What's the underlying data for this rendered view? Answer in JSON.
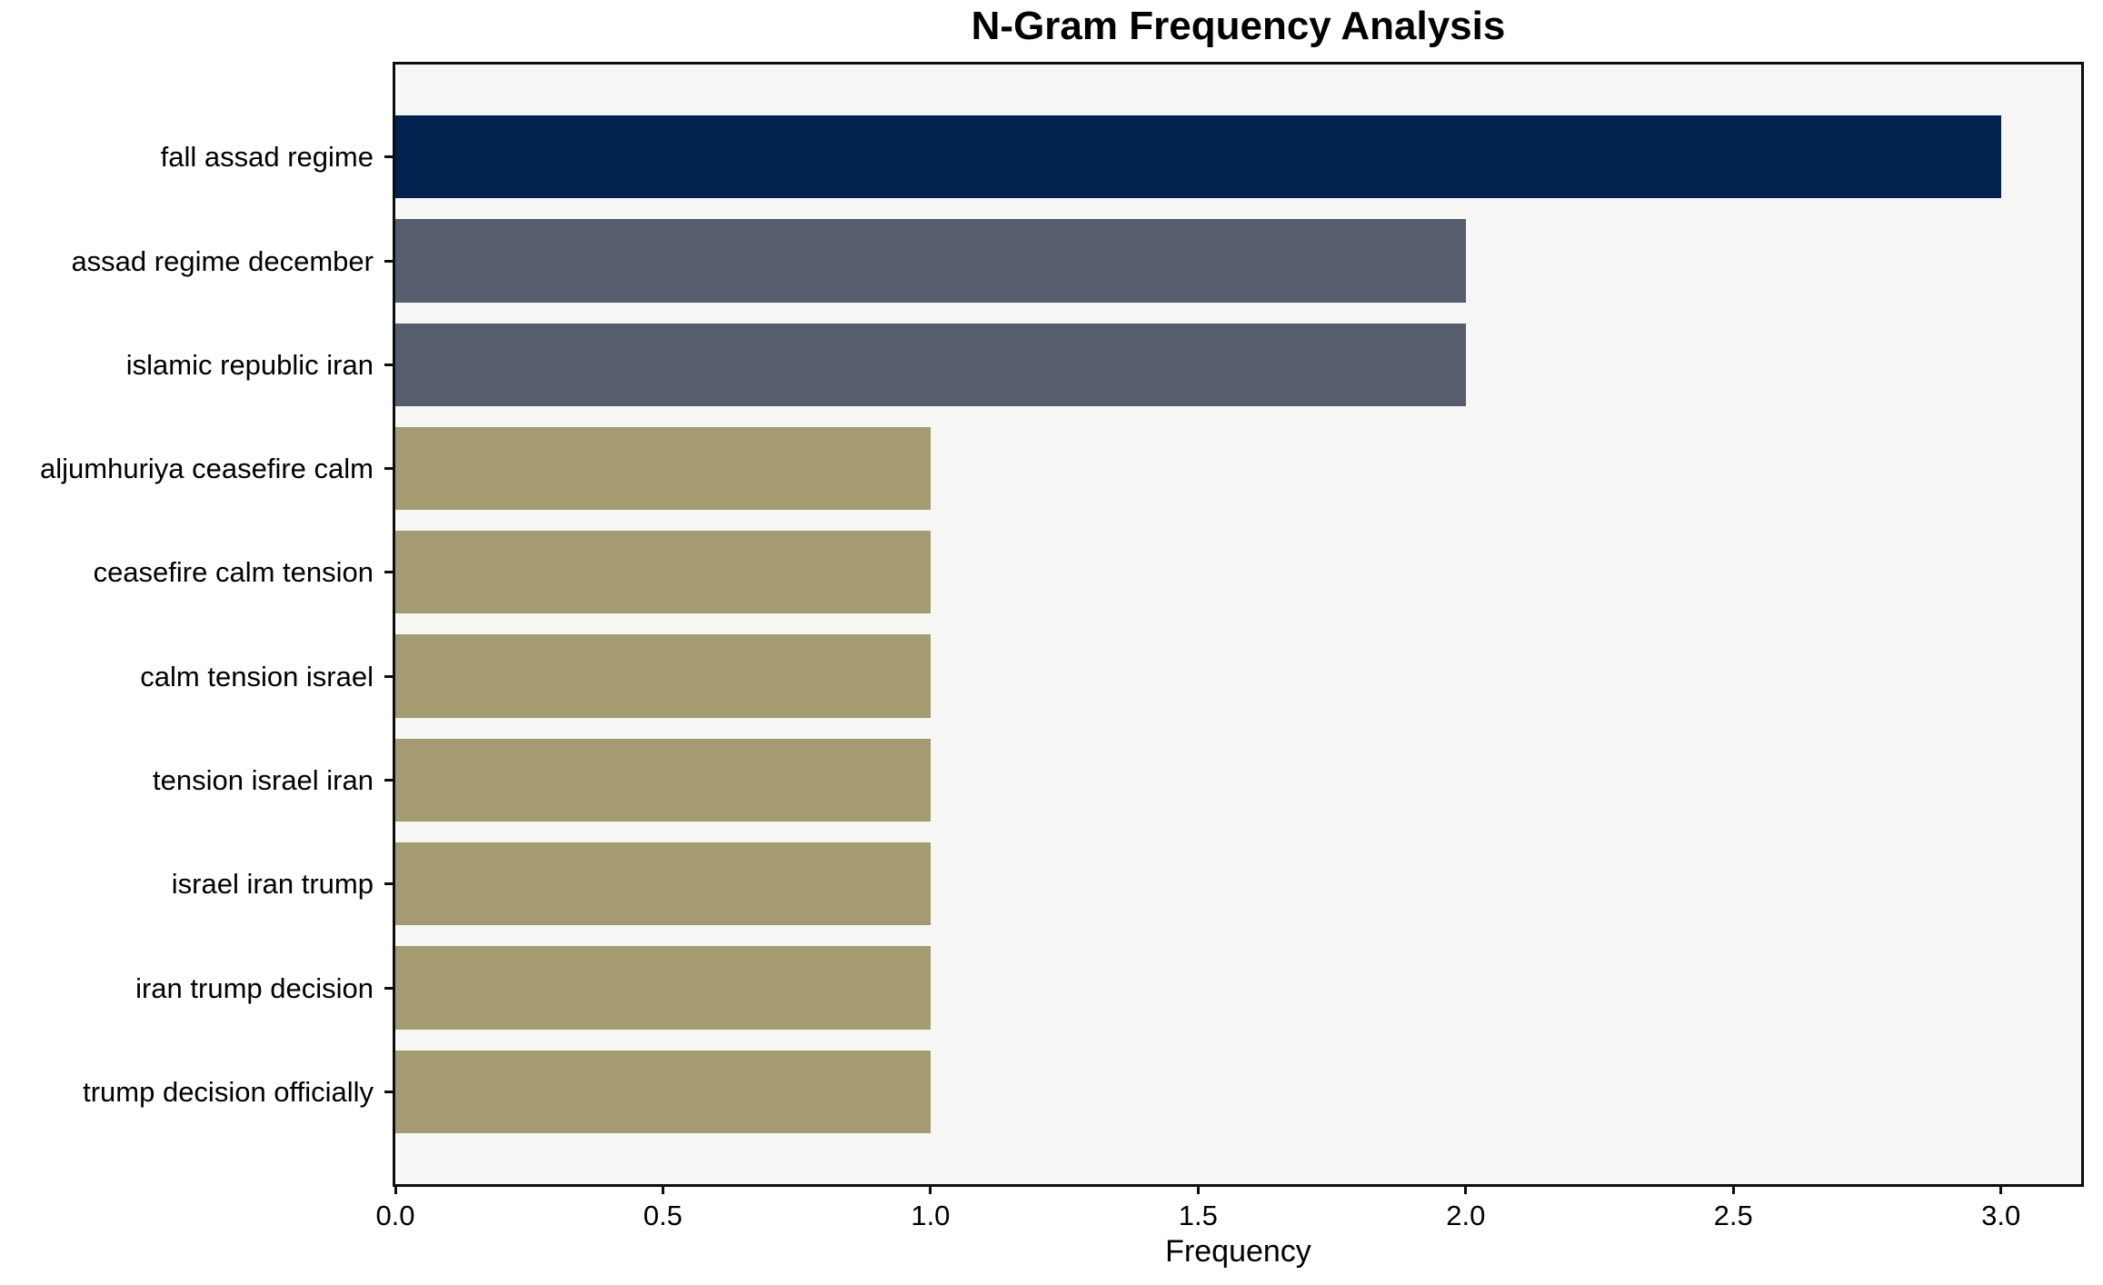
{
  "chart_data": {
    "type": "bar",
    "orientation": "horizontal",
    "title": "N-Gram Frequency Analysis",
    "xlabel": "Frequency",
    "ylabel": "",
    "categories": [
      "fall assad regime",
      "assad regime december",
      "islamic republic iran",
      "aljumhuriya ceasefire calm",
      "ceasefire calm tension",
      "calm tension israel",
      "tension israel iran",
      "israel iran trump",
      "iran trump decision",
      "trump decision officially"
    ],
    "values": [
      3,
      2,
      2,
      1,
      1,
      1,
      1,
      1,
      1,
      1
    ],
    "bar_colors": [
      "#022350",
      "#565d6c",
      "#565d6c",
      "#a49b72",
      "#a49b72",
      "#a49b72",
      "#a49b72",
      "#a49b72",
      "#a49b72",
      "#a49b72"
    ],
    "xlim": [
      0,
      3.15
    ],
    "xticks": [
      "0.0",
      "0.5",
      "1.0",
      "1.5",
      "2.0",
      "2.5",
      "3.0"
    ],
    "xtick_values": [
      0,
      0.5,
      1.0,
      1.5,
      2.0,
      2.5,
      3.0
    ],
    "grid": false,
    "legend": false,
    "plot_background": "#f6f6f5"
  }
}
